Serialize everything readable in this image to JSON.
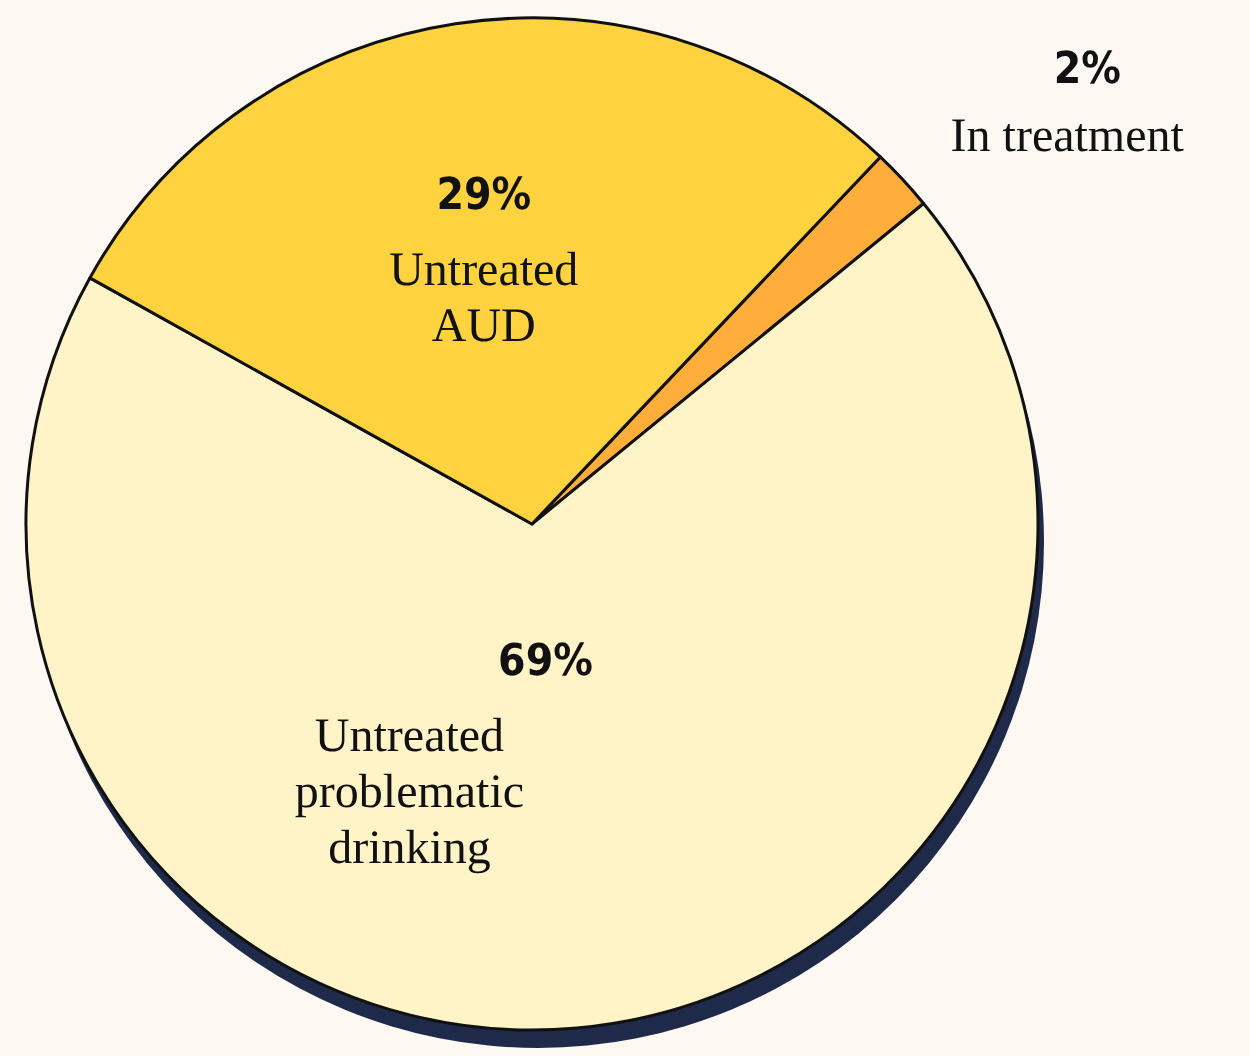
{
  "chart_data": {
    "type": "pie",
    "categories": [
      "In treatment",
      "Untreated problematic drinking",
      "Untreated AUD"
    ],
    "values": [
      2,
      69,
      29
    ],
    "colors": [
      "#ffad3b",
      "#fff3c8",
      "#ffd23f"
    ],
    "value_labels": [
      "2%",
      "69%",
      "29%"
    ]
  }
}
